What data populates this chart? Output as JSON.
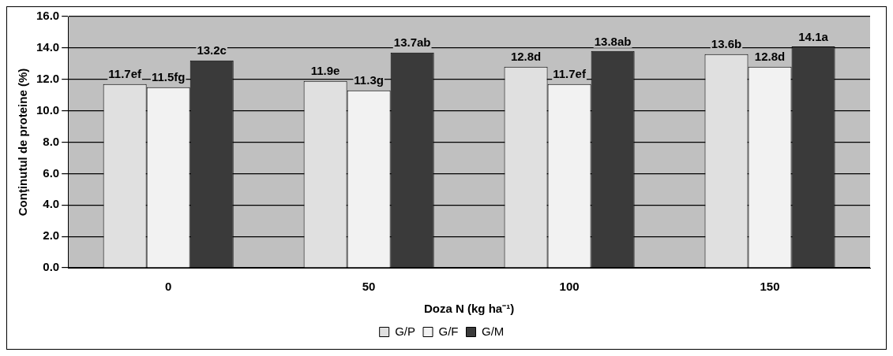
{
  "chart_data": {
    "type": "bar",
    "xlabel": "Doza N (kg ha⁻¹)",
    "ylabel": "Conţinutul de proteine (%)",
    "categories": [
      "0",
      "50",
      "100",
      "150"
    ],
    "series": [
      {
        "name": "G/P",
        "color": "#e0e0e0",
        "values": [
          11.7,
          11.9,
          12.8,
          13.6
        ],
        "value_labels": [
          "11.7ef",
          "11.9e",
          "12.8d",
          "13.6b"
        ]
      },
      {
        "name": "G/F",
        "color": "#f2f2f2",
        "values": [
          11.5,
          11.3,
          11.7,
          12.8
        ],
        "value_labels": [
          "11.5fg",
          "11.3g",
          "11.7ef",
          "12.8d"
        ]
      },
      {
        "name": "G/M",
        "color": "#3a3a3a",
        "values": [
          13.2,
          13.7,
          13.8,
          14.1
        ],
        "value_labels": [
          "13.2c",
          "13.7ab",
          "13.8ab",
          "14.1a"
        ]
      }
    ],
    "ylim": [
      0,
      16
    ],
    "yticks": [
      {
        "value": 0,
        "label": "0.0"
      },
      {
        "value": 2,
        "label": "2.0"
      },
      {
        "value": 4,
        "label": "4.0"
      },
      {
        "value": 6,
        "label": "6.0"
      },
      {
        "value": 8,
        "label": "8.0"
      },
      {
        "value": 10,
        "label": "10.0"
      },
      {
        "value": 12,
        "label": "12.0"
      },
      {
        "value": 14,
        "label": "14.0"
      },
      {
        "value": 16,
        "label": "16.0"
      }
    ],
    "grid": "y",
    "legend": "bottom"
  }
}
